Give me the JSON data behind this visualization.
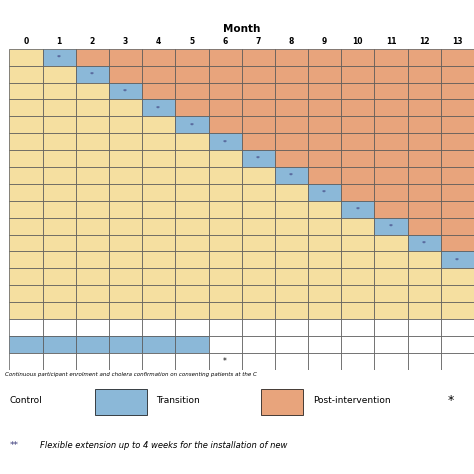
{
  "title": "Month",
  "months": [
    0,
    1,
    2,
    3,
    4,
    5,
    6,
    7,
    8,
    9,
    10,
    11,
    12,
    13
  ],
  "n_main_rows": 16,
  "colors": {
    "control": "#F5DFA0",
    "transition": "#8BB8D8",
    "post_intervention": "#E8A47C",
    "white": "#FFFFFF",
    "grid": "#555555"
  },
  "legend": {
    "control_label": "Control",
    "transition_label": "Transition",
    "post_label": "Post-intervention",
    "star_note": "Flexible extension up to 4 weeks for the installation of new"
  },
  "star_asterisk": "*",
  "double_star": "**",
  "italic_text": "Continuous participant enrolment and cholera confirmation on consenting patients at the C",
  "figsize": [
    4.74,
    4.74
  ],
  "dpi": 100
}
